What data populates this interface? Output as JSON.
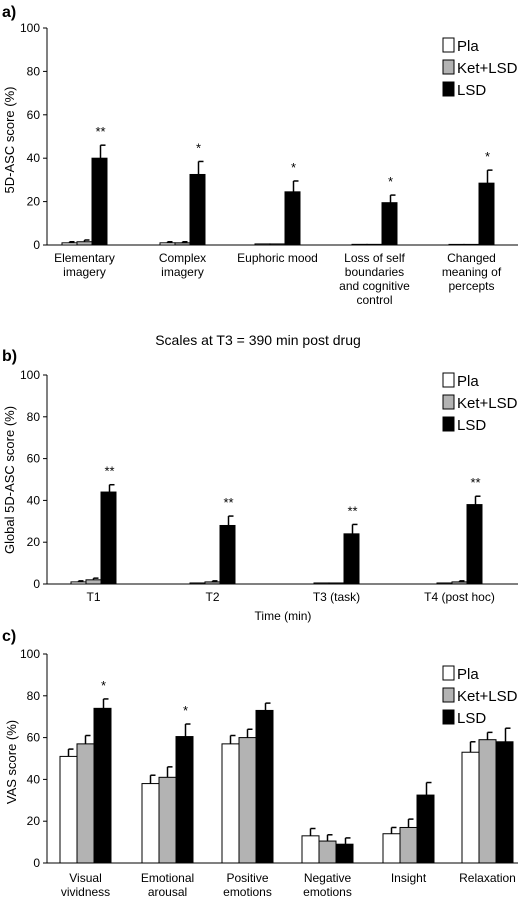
{
  "legend_labels": [
    "Pla",
    "Ket+LSD",
    "LSD"
  ],
  "colors": {
    "Pla": "#ffffff",
    "Ket+LSD": "#b3b3b3",
    "LSD": "#000000"
  },
  "chart_data": [
    {
      "panel": "a)",
      "type": "bar",
      "ylabel": "5D-ASC score (%)",
      "xlabel": "Scales at T3 = 390 min post drug",
      "ylim": [
        0,
        100
      ],
      "yticks": [
        0,
        20,
        40,
        60,
        80,
        100
      ],
      "categories": [
        [
          "Elementary",
          "imagery"
        ],
        [
          "Complex",
          "imagery"
        ],
        [
          "Euphoric mood"
        ],
        [
          "Loss of self",
          "boundaries",
          "and cognitive",
          "control"
        ],
        [
          "Changed",
          "meaning of",
          "percepts"
        ]
      ],
      "series": [
        {
          "name": "Pla",
          "values": [
            1,
            1,
            0.5,
            0.3,
            0.2
          ],
          "errors": [
            0.5,
            0.5,
            0.3,
            0.2,
            0.1
          ]
        },
        {
          "name": "Ket+LSD",
          "values": [
            1.5,
            1,
            0.5,
            0.3,
            0.2
          ],
          "errors": [
            0.8,
            0.5,
            0.3,
            0.2,
            0.1
          ]
        },
        {
          "name": "LSD",
          "values": [
            40,
            32.5,
            24.5,
            19.5,
            28.5
          ],
          "errors": [
            6,
            6,
            5,
            3.5,
            6
          ]
        }
      ],
      "significance": [
        "**",
        "*",
        "*",
        "*",
        "*"
      ],
      "legend_position": "top-right",
      "grid": false
    },
    {
      "panel": "b)",
      "type": "bar",
      "ylabel": "Global 5D-ASC score (%)",
      "xlabel": "Time (min)",
      "ylim": [
        0,
        100
      ],
      "yticks": [
        0,
        20,
        40,
        60,
        80,
        100
      ],
      "categories": [
        [
          "T1"
        ],
        [
          "T2"
        ],
        [
          "T3 (task)"
        ],
        [
          "T4 (post hoc)"
        ]
      ],
      "series": [
        {
          "name": "Pla",
          "values": [
            1,
            0.5,
            0.5,
            0.5
          ],
          "errors": [
            0.5,
            0.3,
            0.3,
            0.3
          ]
        },
        {
          "name": "Ket+LSD",
          "values": [
            2,
            1,
            0.5,
            1
          ],
          "errors": [
            0.8,
            0.5,
            0.3,
            0.5
          ]
        },
        {
          "name": "LSD",
          "values": [
            44,
            28,
            24,
            38
          ],
          "errors": [
            3.5,
            4.5,
            4.5,
            4
          ]
        }
      ],
      "significance": [
        "**",
        "**",
        "**",
        "**"
      ],
      "legend_position": "top-right",
      "grid": false
    },
    {
      "panel": "c)",
      "type": "bar",
      "ylabel": "VAS score (%)",
      "xlabel": "",
      "ylim": [
        0,
        100
      ],
      "yticks": [
        0,
        20,
        40,
        60,
        80,
        100
      ],
      "categories": [
        [
          "Visual",
          "vividness"
        ],
        [
          "Emotional",
          "arousal"
        ],
        [
          "Positive",
          "emotions"
        ],
        [
          "Negative",
          "emotions"
        ],
        [
          "Insight"
        ],
        [
          "Relaxation"
        ]
      ],
      "series": [
        {
          "name": "Pla",
          "values": [
            51,
            38,
            57,
            13,
            14,
            53
          ],
          "errors": [
            3.5,
            4,
            4,
            3.5,
            3,
            5
          ]
        },
        {
          "name": "Ket+LSD",
          "values": [
            57,
            41,
            60,
            10.5,
            17,
            59
          ],
          "errors": [
            4,
            5,
            4,
            3,
            4,
            3.5
          ]
        },
        {
          "name": "LSD",
          "values": [
            74,
            60.5,
            73,
            9,
            32.5,
            58
          ],
          "errors": [
            4.5,
            6,
            3.5,
            3,
            6,
            6.5
          ]
        }
      ],
      "significance": [
        "*",
        "*",
        "",
        "",
        "",
        ""
      ],
      "legend_position": "top-right",
      "grid": false
    }
  ]
}
